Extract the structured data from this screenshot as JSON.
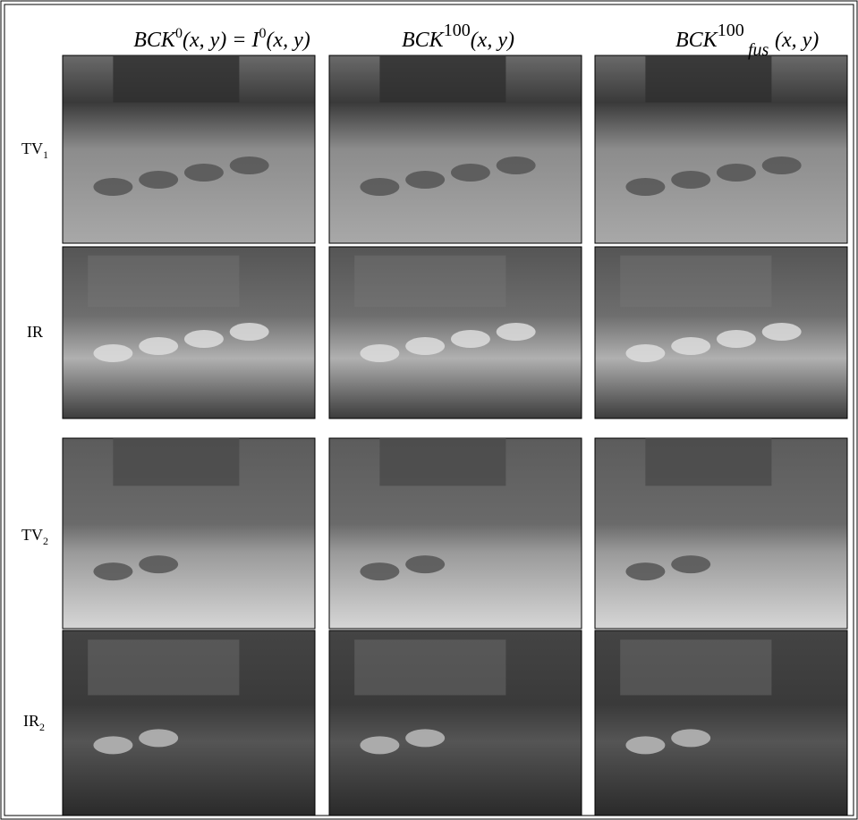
{
  "figure": {
    "columns": [
      {
        "parts": [
          "BCK",
          "0",
          "(x, y) = I",
          "0",
          "(x, y)"
        ]
      },
      {
        "parts": [
          "BCK",
          "100",
          "(x, y)"
        ]
      },
      {
        "parts": [
          "BCK",
          "100",
          "fus",
          "(x, y)"
        ]
      }
    ],
    "rows": [
      {
        "label": "TV",
        "sub": "1"
      },
      {
        "label": "IR"
      },
      {
        "label": "TV",
        "sub": "2"
      },
      {
        "label": "IR",
        "sub": "2"
      }
    ]
  }
}
